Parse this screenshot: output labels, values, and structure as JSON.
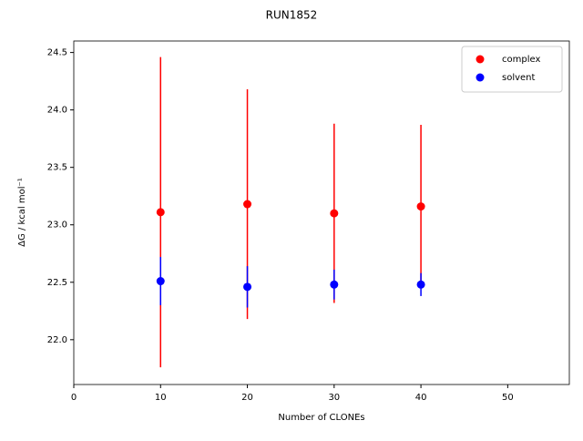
{
  "chart_data": {
    "type": "errorbar-scatter",
    "title": "RUN1852",
    "x_label": "Number of CLONEs",
    "y_label": "ΔG / kcal mol⁻¹",
    "series": [
      {
        "name": "complex",
        "color": "#ff0000",
        "x": [
          10,
          20,
          30,
          40
        ],
        "values": [
          23.11,
          23.18,
          23.1,
          23.16
        ],
        "errors": [
          1.35,
          1.0,
          0.78,
          0.71
        ]
      },
      {
        "name": "solvent",
        "color": "#0000ff",
        "x": [
          10,
          20,
          30,
          40
        ],
        "values": [
          22.51,
          22.46,
          22.48,
          22.48
        ],
        "errors": [
          0.21,
          0.18,
          0.13,
          0.1
        ]
      }
    ],
    "xlim": [
      0,
      57.1
    ],
    "xticks": [
      0,
      10,
      20,
      30,
      40,
      50
    ],
    "ylim": [
      21.61,
      24.6
    ],
    "yticks": [
      {
        "value": 22.0,
        "label": "22.0"
      },
      22.5,
      {
        "value": 23.0,
        "label": "23.0"
      },
      23.5,
      {
        "value": 24.0,
        "label": "24.0"
      },
      24.5
    ],
    "legend": "upper right"
  }
}
